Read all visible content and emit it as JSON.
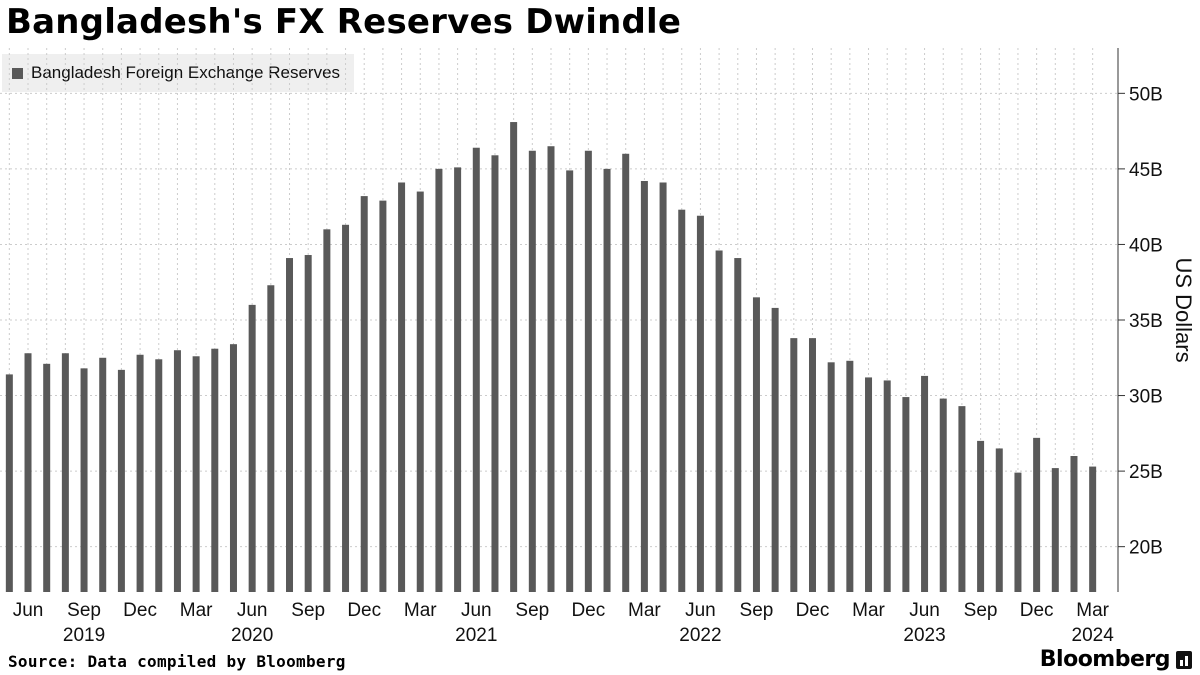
{
  "title": "Bangladesh's FX Reserves Dwindle",
  "source": "Source: Data compiled by Bloomberg",
  "brand": "Bloomberg",
  "colors": {
    "bar": "#595959",
    "grid": "#cccccc",
    "background": "#ffffff",
    "legend_bg": "#efefef"
  },
  "chart_data": {
    "type": "bar",
    "series": [
      {
        "name": "Bangladesh Foreign Exchange Reserves",
        "values": [
          31.4,
          32.8,
          32.1,
          32.8,
          31.8,
          32.5,
          31.7,
          32.7,
          32.4,
          33.0,
          32.6,
          33.1,
          33.4,
          36.0,
          37.3,
          39.1,
          39.3,
          41.0,
          41.3,
          43.2,
          42.9,
          44.1,
          43.5,
          45.0,
          45.1,
          46.4,
          45.9,
          48.1,
          46.2,
          46.5,
          44.9,
          46.2,
          45.0,
          46.0,
          44.2,
          44.1,
          42.3,
          41.9,
          39.6,
          39.1,
          36.5,
          35.8,
          33.8,
          33.8,
          32.2,
          32.3,
          31.2,
          31.0,
          29.9,
          31.3,
          29.8,
          29.3,
          27.0,
          26.5,
          24.9,
          27.2,
          25.2,
          26.0,
          25.3
        ]
      }
    ],
    "ylabel": "US Dollars",
    "ylim": [
      17,
      53
    ],
    "yticks": [
      {
        "value": 20,
        "label": "20B"
      },
      {
        "value": 25,
        "label": "25B"
      },
      {
        "value": 30,
        "label": "30B"
      },
      {
        "value": 35,
        "label": "35B"
      },
      {
        "value": 40,
        "label": "40B"
      },
      {
        "value": 45,
        "label": "45B"
      },
      {
        "value": 50,
        "label": "50B"
      }
    ],
    "xticks": [
      {
        "index": 1,
        "label": "Jun"
      },
      {
        "index": 4,
        "label": "Sep"
      },
      {
        "index": 7,
        "label": "Dec"
      },
      {
        "index": 10,
        "label": "Mar"
      },
      {
        "index": 13,
        "label": "Jun"
      },
      {
        "index": 16,
        "label": "Sep"
      },
      {
        "index": 19,
        "label": "Dec"
      },
      {
        "index": 22,
        "label": "Mar"
      },
      {
        "index": 25,
        "label": "Jun"
      },
      {
        "index": 28,
        "label": "Sep"
      },
      {
        "index": 31,
        "label": "Dec"
      },
      {
        "index": 34,
        "label": "Mar"
      },
      {
        "index": 37,
        "label": "Jun"
      },
      {
        "index": 40,
        "label": "Sep"
      },
      {
        "index": 43,
        "label": "Dec"
      },
      {
        "index": 46,
        "label": "Mar"
      },
      {
        "index": 49,
        "label": "Jun"
      },
      {
        "index": 52,
        "label": "Sep"
      },
      {
        "index": 55,
        "label": "Dec"
      },
      {
        "index": 58,
        "label": "Mar"
      }
    ],
    "year_labels": [
      {
        "index": 4,
        "label": "2019"
      },
      {
        "index": 13,
        "label": "2020"
      },
      {
        "index": 25,
        "label": "2021"
      },
      {
        "index": 37,
        "label": "2022"
      },
      {
        "index": 49,
        "label": "2023"
      },
      {
        "index": 58,
        "label": "2024"
      }
    ],
    "grid": true,
    "legend_position": "top-left"
  }
}
